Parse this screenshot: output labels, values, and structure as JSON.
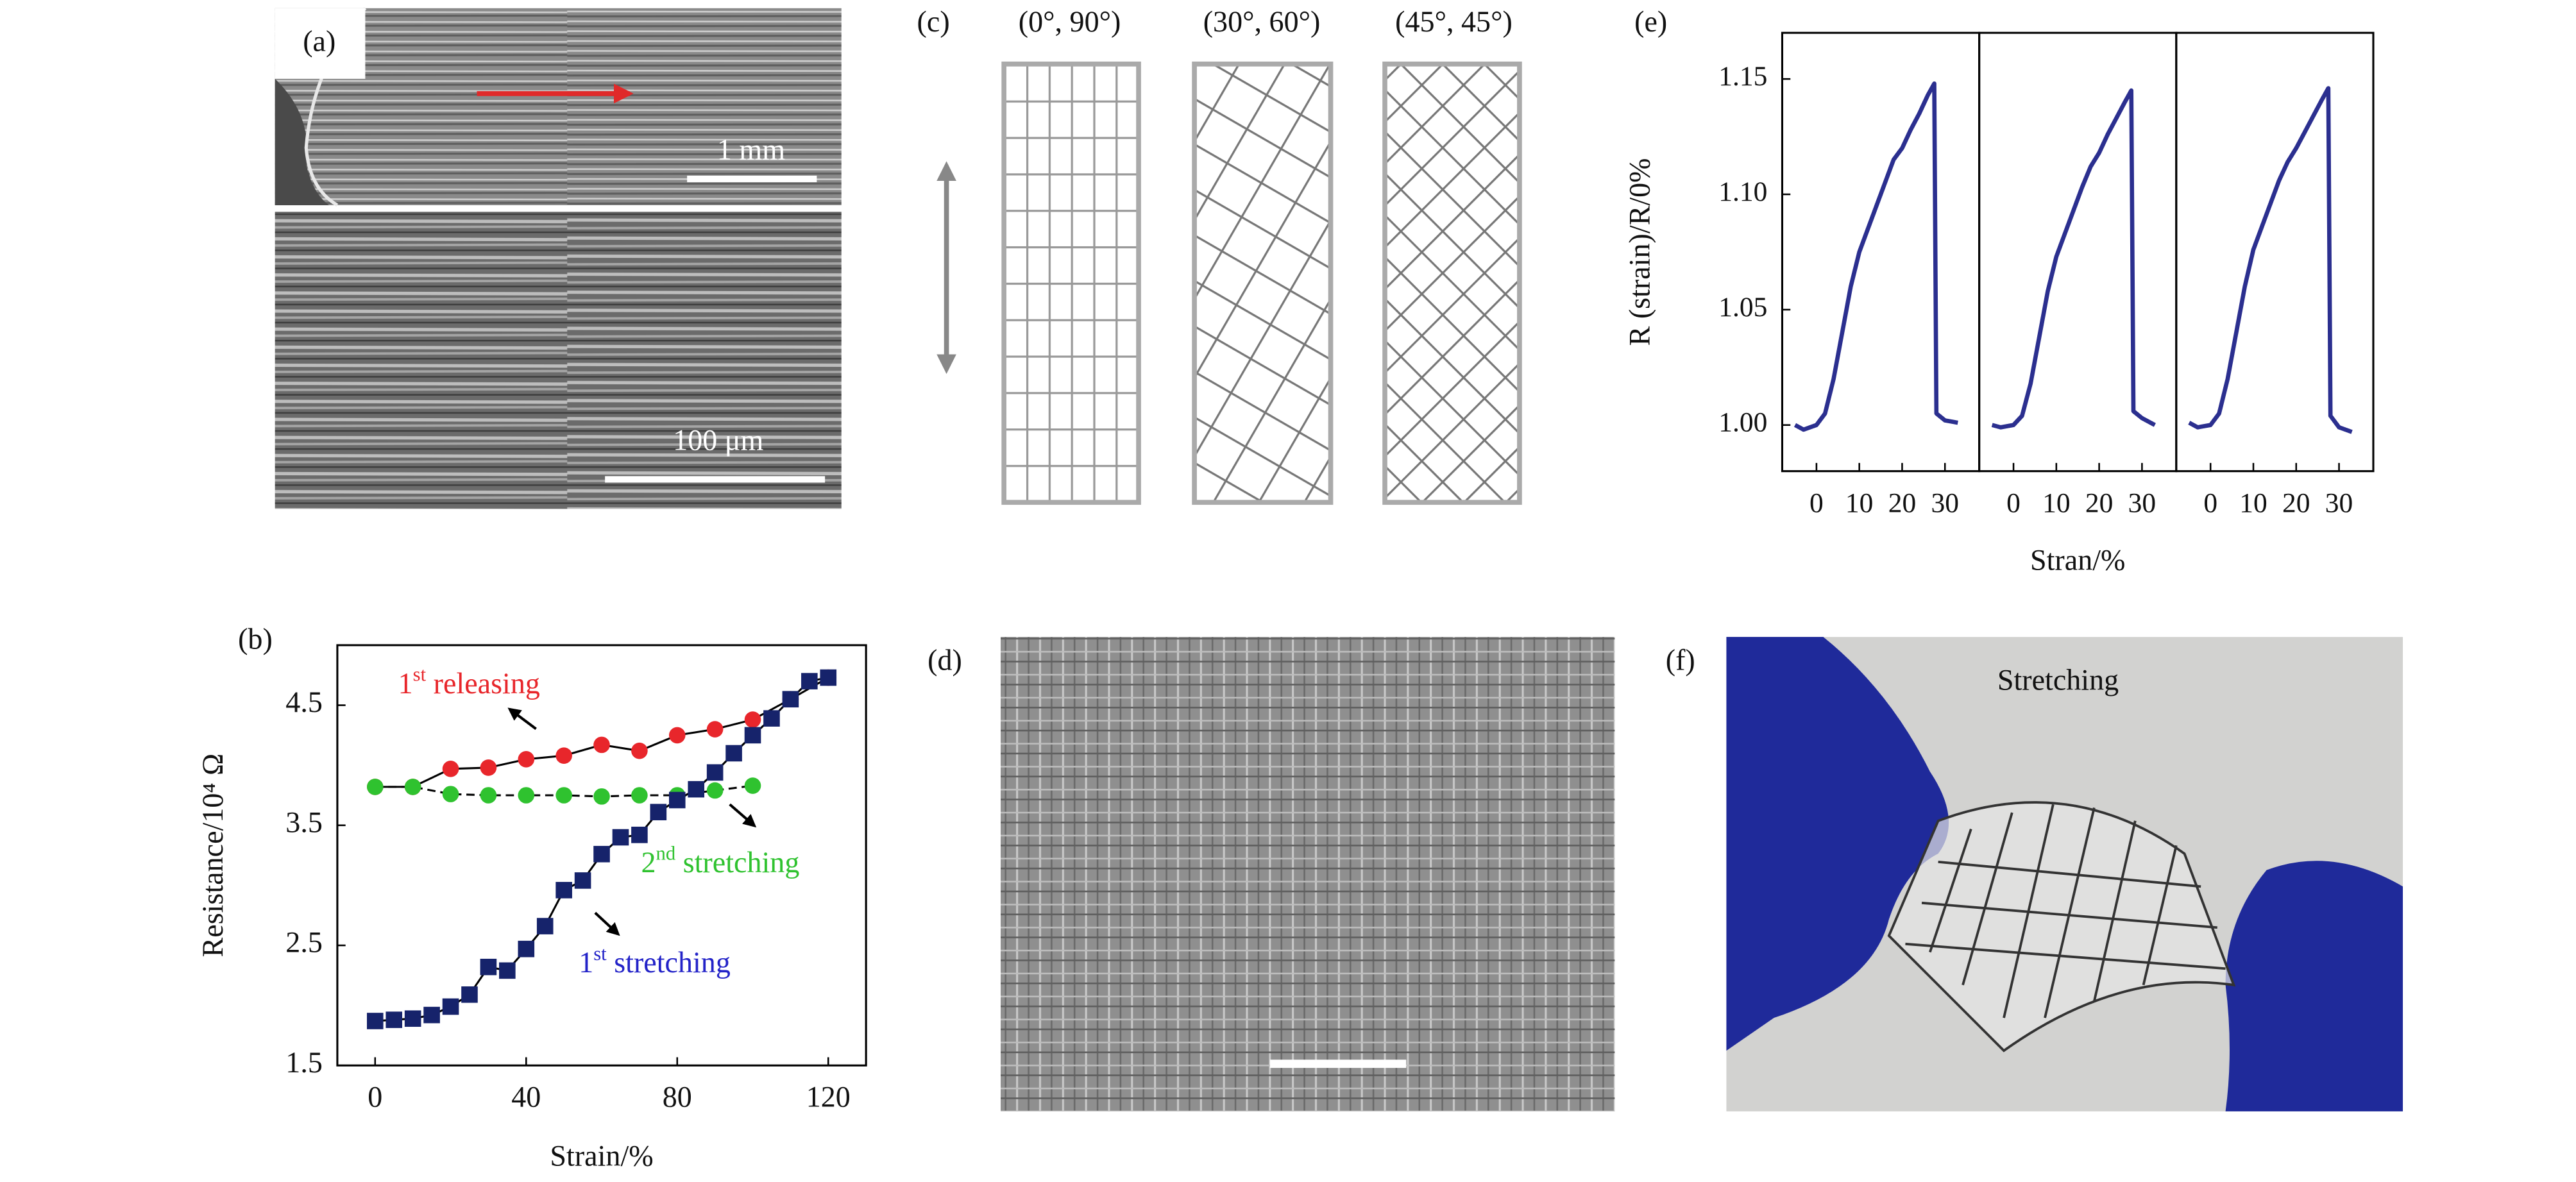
{
  "figure": {
    "panel_a": {
      "label": "(a)",
      "scale_top": "1 mm",
      "scale_bottom": "100 μm"
    },
    "panel_c": {
      "label": "(c)",
      "patterns": [
        "(0°, 90°)",
        "(30°, 60°)",
        "(45°, 45°)"
      ]
    },
    "panel_d": {
      "label": "(d)"
    },
    "panel_f": {
      "label": "(f)",
      "caption": "Stretching"
    }
  },
  "chart_data": [
    {
      "type": "line",
      "label": "(b)",
      "xlabel": "Strain/%",
      "ylabel": "Resistance/10⁴ Ω",
      "xlim": [
        -10,
        130
      ],
      "ylim": [
        1.5,
        5.0
      ],
      "xticks": [
        0,
        40,
        80,
        120
      ],
      "yticks": [
        1.5,
        2.5,
        3.5,
        4.5
      ],
      "line_color": "#000000",
      "series": [
        {
          "name": "1st releasing",
          "color": "#e8262b",
          "marker": "circle",
          "linestyle": "solid",
          "x": [
            0,
            10,
            20,
            30,
            40,
            50,
            60,
            70,
            80,
            90,
            100,
            110,
            120
          ],
          "values": [
            3.82,
            3.82,
            3.97,
            3.98,
            4.05,
            4.08,
            4.17,
            4.12,
            4.25,
            4.3,
            4.38,
            4.55,
            4.73
          ]
        },
        {
          "name": "2nd stretching",
          "color": "#2fc22f",
          "marker": "circle",
          "linestyle": "dashed",
          "x": [
            0,
            10,
            20,
            30,
            40,
            50,
            60,
            70,
            80,
            90,
            100
          ],
          "values": [
            3.82,
            3.82,
            3.76,
            3.75,
            3.75,
            3.75,
            3.74,
            3.75,
            3.75,
            3.79,
            3.83
          ]
        },
        {
          "name": "1st stretching",
          "color": "#16236b",
          "marker": "square",
          "linestyle": "solid",
          "x": [
            0,
            5,
            10,
            15,
            20,
            25,
            30,
            35,
            40,
            45,
            50,
            55,
            60,
            65,
            70,
            75,
            80,
            85,
            90,
            95,
            100,
            105,
            110,
            115,
            120
          ],
          "values": [
            1.87,
            1.88,
            1.89,
            1.92,
            1.99,
            2.09,
            2.32,
            2.29,
            2.47,
            2.66,
            2.96,
            3.04,
            3.26,
            3.4,
            3.42,
            3.61,
            3.71,
            3.8,
            3.94,
            4.1,
            4.25,
            4.39,
            4.55,
            4.7,
            4.73
          ]
        }
      ],
      "annotations": [
        {
          "prefix": "1",
          "sup": "st",
          "suffix": " releasing",
          "color": "#e8262b"
        },
        {
          "prefix": "2",
          "sup": "nd",
          "suffix": " stretching",
          "color": "#2fc22f"
        },
        {
          "prefix": "1",
          "sup": "st",
          "suffix": " stretching",
          "color": "#2323c8"
        }
      ]
    },
    {
      "type": "line",
      "label": "(e)",
      "xlabel": "Stran/%",
      "ylabel": "R (strain)/R/0%",
      "xlim": [
        -8,
        38
      ],
      "ylim": [
        0.98,
        1.17
      ],
      "xticks": [
        0,
        10,
        20,
        30
      ],
      "yticks": [
        {
          "value": 1.0,
          "label": "1.00"
        },
        1.05,
        {
          "value": 1.1,
          "label": "1.10"
        },
        1.15
      ],
      "color": "#2b2f8f",
      "subplots": [
        {
          "x": [
            -5,
            -3,
            0,
            2,
            4,
            6,
            8,
            10,
            12,
            14,
            16,
            18,
            20,
            22,
            24,
            26,
            27.5,
            28,
            30,
            33
          ],
          "values": [
            1.0,
            0.998,
            1.0,
            1.005,
            1.02,
            1.04,
            1.06,
            1.075,
            1.085,
            1.095,
            1.105,
            1.115,
            1.12,
            1.128,
            1.135,
            1.143,
            1.148,
            1.005,
            1.002,
            1.001
          ]
        },
        {
          "x": [
            -5,
            -3,
            0,
            2,
            4,
            6,
            8,
            10,
            12,
            14,
            16,
            18,
            20,
            22,
            24,
            26,
            27.5,
            28,
            30,
            33
          ],
          "values": [
            1.0,
            0.999,
            1.0,
            1.004,
            1.018,
            1.038,
            1.058,
            1.073,
            1.083,
            1.093,
            1.103,
            1.112,
            1.118,
            1.126,
            1.133,
            1.14,
            1.145,
            1.006,
            1.003,
            1.0
          ]
        },
        {
          "x": [
            -5,
            -3,
            0,
            2,
            4,
            6,
            8,
            10,
            12,
            14,
            16,
            18,
            20,
            22,
            24,
            26,
            27.5,
            28,
            30,
            33
          ],
          "values": [
            1.001,
            0.999,
            1.0,
            1.005,
            1.02,
            1.04,
            1.06,
            1.076,
            1.086,
            1.096,
            1.106,
            1.114,
            1.12,
            1.127,
            1.134,
            1.141,
            1.146,
            1.004,
            0.999,
            0.997
          ]
        }
      ]
    }
  ]
}
